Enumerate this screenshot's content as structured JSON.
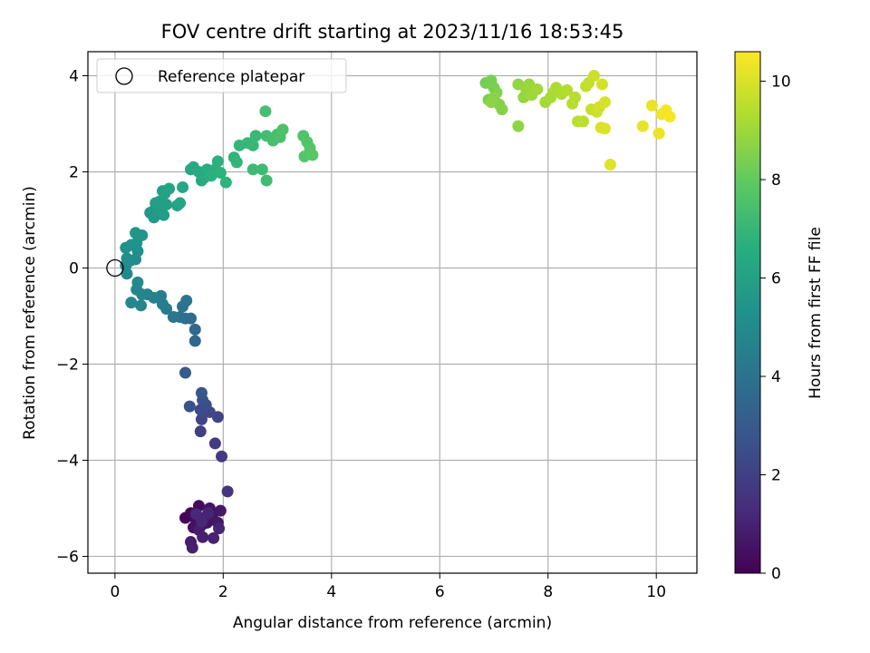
{
  "chart_data": {
    "type": "scatter",
    "title": "FOV centre drift starting at 2023/11/16 18:53:45",
    "xlabel": "Angular distance from reference (arcmin)",
    "ylabel": "Rotation from reference (arcmin)",
    "xlim": [
      -0.5,
      10.75
    ],
    "ylim": [
      -6.35,
      4.5
    ],
    "xticks": [
      0,
      2,
      4,
      6,
      8,
      10
    ],
    "yticks": [
      -6,
      -4,
      -2,
      0,
      2,
      4
    ],
    "grid": true,
    "legend": {
      "placement": "top-left",
      "entries": [
        {
          "label": "Reference platepar",
          "marker": "open-circle"
        }
      ]
    },
    "reference_point": {
      "x": 0,
      "y": 0
    },
    "colorbar": {
      "label": "Hours from first FF file",
      "min": 0,
      "max": 10.6,
      "ticks": [
        0,
        2,
        4,
        6,
        8,
        10
      ],
      "colormap": "viridis"
    },
    "points": [
      {
        "x": 1.3,
        "y": -5.2,
        "c": 0.1
      },
      {
        "x": 1.4,
        "y": -5.1,
        "c": 0.2
      },
      {
        "x": 1.55,
        "y": -4.95,
        "c": 0.3
      },
      {
        "x": 1.5,
        "y": -5.25,
        "c": 0.35
      },
      {
        "x": 1.6,
        "y": -5.35,
        "c": 0.4
      },
      {
        "x": 1.45,
        "y": -5.4,
        "c": 0.45
      },
      {
        "x": 1.7,
        "y": -5.3,
        "c": 0.5
      },
      {
        "x": 1.75,
        "y": -5.0,
        "c": 0.55
      },
      {
        "x": 1.8,
        "y": -5.15,
        "c": 0.6
      },
      {
        "x": 1.9,
        "y": -5.3,
        "c": 0.65
      },
      {
        "x": 1.95,
        "y": -5.05,
        "c": 0.7
      },
      {
        "x": 1.65,
        "y": -5.2,
        "c": 0.75
      },
      {
        "x": 1.55,
        "y": -5.45,
        "c": 0.8
      },
      {
        "x": 1.4,
        "y": -5.7,
        "c": 0.85
      },
      {
        "x": 1.43,
        "y": -5.82,
        "c": 0.9
      },
      {
        "x": 1.62,
        "y": -5.6,
        "c": 0.95
      },
      {
        "x": 1.82,
        "y": -5.62,
        "c": 1.0
      },
      {
        "x": 1.92,
        "y": -5.42,
        "c": 1.05
      },
      {
        "x": 1.72,
        "y": -5.1,
        "c": 1.1
      },
      {
        "x": 1.6,
        "y": -5.28,
        "c": 1.15
      },
      {
        "x": 1.5,
        "y": -5.12,
        "c": 1.2
      },
      {
        "x": 2.08,
        "y": -4.65,
        "c": 1.7
      },
      {
        "x": 1.97,
        "y": -3.92,
        "c": 1.8
      },
      {
        "x": 1.85,
        "y": -3.65,
        "c": 1.9
      },
      {
        "x": 1.58,
        "y": -3.4,
        "c": 2.0
      },
      {
        "x": 1.9,
        "y": -3.1,
        "c": 2.1
      },
      {
        "x": 1.6,
        "y": -3.15,
        "c": 2.2
      },
      {
        "x": 1.75,
        "y": -3.0,
        "c": 2.3
      },
      {
        "x": 1.58,
        "y": -2.95,
        "c": 2.4
      },
      {
        "x": 1.68,
        "y": -2.85,
        "c": 2.5
      },
      {
        "x": 1.62,
        "y": -2.75,
        "c": 2.6
      },
      {
        "x": 1.38,
        "y": -2.88,
        "c": 2.7
      },
      {
        "x": 1.6,
        "y": -2.6,
        "c": 2.8
      },
      {
        "x": 1.3,
        "y": -2.18,
        "c": 3.0
      },
      {
        "x": 1.48,
        "y": -1.52,
        "c": 3.5
      },
      {
        "x": 1.48,
        "y": -1.28,
        "c": 3.6
      },
      {
        "x": 1.4,
        "y": -1.05,
        "c": 3.7
      },
      {
        "x": 1.3,
        "y": -1.05,
        "c": 3.8
      },
      {
        "x": 1.2,
        "y": -1.02,
        "c": 3.9
      },
      {
        "x": 1.25,
        "y": -0.8,
        "c": 4.0
      },
      {
        "x": 1.32,
        "y": -0.68,
        "c": 4.1
      },
      {
        "x": 1.08,
        "y": -1.02,
        "c": 4.2
      },
      {
        "x": 0.95,
        "y": -0.85,
        "c": 4.3
      },
      {
        "x": 0.88,
        "y": -0.75,
        "c": 4.4
      },
      {
        "x": 0.85,
        "y": -0.58,
        "c": 4.5
      },
      {
        "x": 0.72,
        "y": -0.62,
        "c": 4.6
      },
      {
        "x": 0.6,
        "y": -0.55,
        "c": 4.7
      },
      {
        "x": 0.5,
        "y": -0.55,
        "c": 4.75
      },
      {
        "x": 0.4,
        "y": -0.45,
        "c": 4.8
      },
      {
        "x": 0.48,
        "y": -0.78,
        "c": 4.85
      },
      {
        "x": 0.3,
        "y": -0.72,
        "c": 4.9
      },
      {
        "x": 0.42,
        "y": -0.3,
        "c": 4.95
      },
      {
        "x": 0.22,
        "y": -0.12,
        "c": 5.0
      },
      {
        "x": 0.2,
        "y": 0.05,
        "c": 5.05
      },
      {
        "x": 0.28,
        "y": 0.15,
        "c": 5.1
      },
      {
        "x": 0.38,
        "y": 0.18,
        "c": 5.15
      },
      {
        "x": 0.22,
        "y": 0.2,
        "c": 5.2
      },
      {
        "x": 0.42,
        "y": 0.35,
        "c": 5.25
      },
      {
        "x": 0.2,
        "y": 0.42,
        "c": 5.3
      },
      {
        "x": 0.3,
        "y": 0.48,
        "c": 5.35
      },
      {
        "x": 0.4,
        "y": 0.52,
        "c": 5.4
      },
      {
        "x": 0.5,
        "y": 0.68,
        "c": 5.45
      },
      {
        "x": 0.38,
        "y": 0.73,
        "c": 5.5
      },
      {
        "x": 0.65,
        "y": 1.15,
        "c": 5.6
      },
      {
        "x": 0.72,
        "y": 1.05,
        "c": 5.65
      },
      {
        "x": 0.75,
        "y": 1.25,
        "c": 5.7
      },
      {
        "x": 0.85,
        "y": 1.2,
        "c": 5.75
      },
      {
        "x": 0.9,
        "y": 1.1,
        "c": 5.8
      },
      {
        "x": 0.82,
        "y": 1.38,
        "c": 5.85
      },
      {
        "x": 0.75,
        "y": 1.35,
        "c": 5.9
      },
      {
        "x": 0.95,
        "y": 1.32,
        "c": 5.95
      },
      {
        "x": 0.88,
        "y": 1.6,
        "c": 6.0
      },
      {
        "x": 0.92,
        "y": 1.55,
        "c": 6.05
      },
      {
        "x": 1.0,
        "y": 1.65,
        "c": 6.1
      },
      {
        "x": 1.15,
        "y": 1.3,
        "c": 6.15
      },
      {
        "x": 1.2,
        "y": 1.35,
        "c": 6.2
      },
      {
        "x": 1.25,
        "y": 1.68,
        "c": 6.25
      },
      {
        "x": 1.4,
        "y": 2.05,
        "c": 6.3
      },
      {
        "x": 1.45,
        "y": 2.1,
        "c": 6.35
      },
      {
        "x": 1.55,
        "y": 2.0,
        "c": 6.4
      },
      {
        "x": 1.6,
        "y": 1.82,
        "c": 6.45
      },
      {
        "x": 1.65,
        "y": 1.88,
        "c": 6.5
      },
      {
        "x": 1.7,
        "y": 2.05,
        "c": 6.55
      },
      {
        "x": 1.75,
        "y": 1.95,
        "c": 6.6
      },
      {
        "x": 1.85,
        "y": 2.05,
        "c": 6.65
      },
      {
        "x": 1.9,
        "y": 2.22,
        "c": 6.7
      },
      {
        "x": 1.78,
        "y": 1.92,
        "c": 6.72
      },
      {
        "x": 1.95,
        "y": 1.98,
        "c": 6.75
      },
      {
        "x": 2.05,
        "y": 1.78,
        "c": 6.8
      },
      {
        "x": 2.2,
        "y": 2.3,
        "c": 6.85
      },
      {
        "x": 2.25,
        "y": 2.2,
        "c": 6.9
      },
      {
        "x": 2.3,
        "y": 2.55,
        "c": 6.95
      },
      {
        "x": 2.45,
        "y": 2.6,
        "c": 7.0
      },
      {
        "x": 2.55,
        "y": 2.55,
        "c": 7.05
      },
      {
        "x": 2.6,
        "y": 2.75,
        "c": 7.1
      },
      {
        "x": 2.55,
        "y": 2.05,
        "c": 7.15
      },
      {
        "x": 2.72,
        "y": 2.05,
        "c": 7.2
      },
      {
        "x": 2.8,
        "y": 1.82,
        "c": 7.25
      },
      {
        "x": 2.8,
        "y": 2.75,
        "c": 7.3
      },
      {
        "x": 2.78,
        "y": 3.26,
        "c": 7.35
      },
      {
        "x": 2.92,
        "y": 2.65,
        "c": 7.4
      },
      {
        "x": 3.0,
        "y": 2.78,
        "c": 7.45
      },
      {
        "x": 3.05,
        "y": 2.72,
        "c": 7.5
      },
      {
        "x": 3.1,
        "y": 2.88,
        "c": 7.55
      },
      {
        "x": 3.48,
        "y": 2.75,
        "c": 7.6
      },
      {
        "x": 3.55,
        "y": 2.62,
        "c": 7.65
      },
      {
        "x": 3.6,
        "y": 2.5,
        "c": 7.7
      },
      {
        "x": 3.5,
        "y": 2.32,
        "c": 7.75
      },
      {
        "x": 3.65,
        "y": 2.35,
        "c": 7.8
      },
      {
        "x": 6.85,
        "y": 3.85,
        "c": 8.3
      },
      {
        "x": 6.95,
        "y": 3.9,
        "c": 8.35
      },
      {
        "x": 7.0,
        "y": 3.75,
        "c": 8.4
      },
      {
        "x": 6.9,
        "y": 3.5,
        "c": 8.45
      },
      {
        "x": 7.05,
        "y": 3.65,
        "c": 8.5
      },
      {
        "x": 7.1,
        "y": 3.4,
        "c": 8.55
      },
      {
        "x": 7.15,
        "y": 3.3,
        "c": 8.6
      },
      {
        "x": 7.0,
        "y": 3.55,
        "c": 8.65
      },
      {
        "x": 6.95,
        "y": 3.45,
        "c": 8.7
      },
      {
        "x": 7.45,
        "y": 2.95,
        "c": 8.75
      },
      {
        "x": 7.45,
        "y": 3.82,
        "c": 8.8
      },
      {
        "x": 7.55,
        "y": 3.55,
        "c": 8.85
      },
      {
        "x": 7.6,
        "y": 3.7,
        "c": 8.9
      },
      {
        "x": 7.65,
        "y": 3.82,
        "c": 8.95
      },
      {
        "x": 7.7,
        "y": 3.6,
        "c": 9.0
      },
      {
        "x": 7.8,
        "y": 3.72,
        "c": 9.05
      },
      {
        "x": 7.95,
        "y": 3.45,
        "c": 9.1
      },
      {
        "x": 8.05,
        "y": 3.55,
        "c": 9.15
      },
      {
        "x": 8.1,
        "y": 3.65,
        "c": 9.2
      },
      {
        "x": 8.15,
        "y": 3.75,
        "c": 9.25
      },
      {
        "x": 8.25,
        "y": 3.62,
        "c": 9.3
      },
      {
        "x": 8.35,
        "y": 3.7,
        "c": 9.35
      },
      {
        "x": 8.45,
        "y": 3.42,
        "c": 9.4
      },
      {
        "x": 8.5,
        "y": 3.55,
        "c": 9.45
      },
      {
        "x": 8.55,
        "y": 3.05,
        "c": 9.5
      },
      {
        "x": 8.65,
        "y": 3.05,
        "c": 9.55
      },
      {
        "x": 8.7,
        "y": 3.78,
        "c": 9.6
      },
      {
        "x": 8.75,
        "y": 3.85,
        "c": 9.65
      },
      {
        "x": 8.8,
        "y": 3.3,
        "c": 9.7
      },
      {
        "x": 8.85,
        "y": 4.0,
        "c": 9.75
      },
      {
        "x": 8.9,
        "y": 3.25,
        "c": 9.8
      },
      {
        "x": 8.95,
        "y": 3.35,
        "c": 9.85
      },
      {
        "x": 9.0,
        "y": 3.82,
        "c": 9.9
      },
      {
        "x": 9.05,
        "y": 3.45,
        "c": 9.95
      },
      {
        "x": 8.98,
        "y": 2.92,
        "c": 10.0
      },
      {
        "x": 9.05,
        "y": 2.9,
        "c": 10.05
      },
      {
        "x": 9.15,
        "y": 2.15,
        "c": 10.1
      },
      {
        "x": 9.75,
        "y": 2.95,
        "c": 10.2
      },
      {
        "x": 9.92,
        "y": 3.38,
        "c": 10.25
      },
      {
        "x": 10.05,
        "y": 2.8,
        "c": 10.3
      },
      {
        "x": 10.1,
        "y": 3.2,
        "c": 10.4
      },
      {
        "x": 10.18,
        "y": 3.28,
        "c": 10.45
      },
      {
        "x": 10.25,
        "y": 3.15,
        "c": 10.5
      }
    ]
  }
}
